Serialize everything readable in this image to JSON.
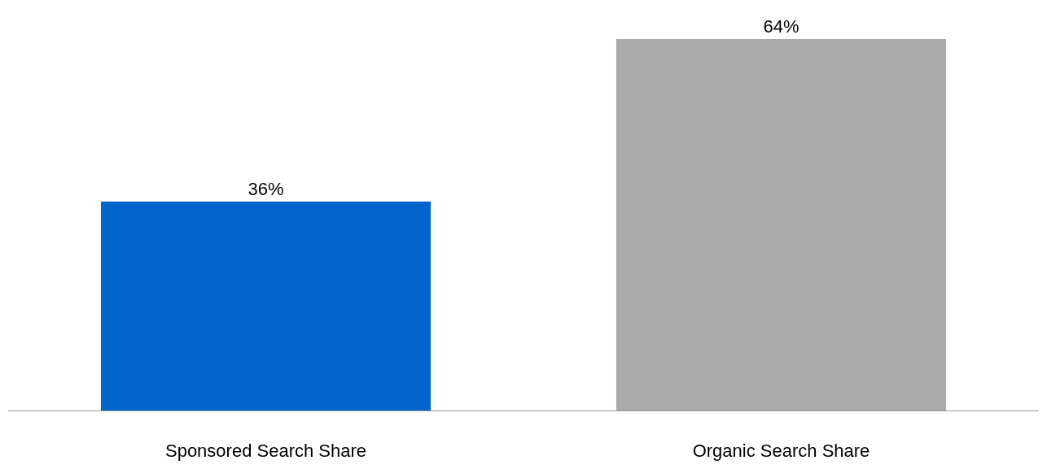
{
  "chart_data": {
    "type": "bar",
    "categories": [
      "Sponsored Search Share",
      "Organic Search Share"
    ],
    "values": [
      36,
      64
    ],
    "colors": [
      "#0066cc",
      "#aaaaaa"
    ],
    "value_labels": [
      "36%",
      "64%"
    ],
    "legend": false
  }
}
